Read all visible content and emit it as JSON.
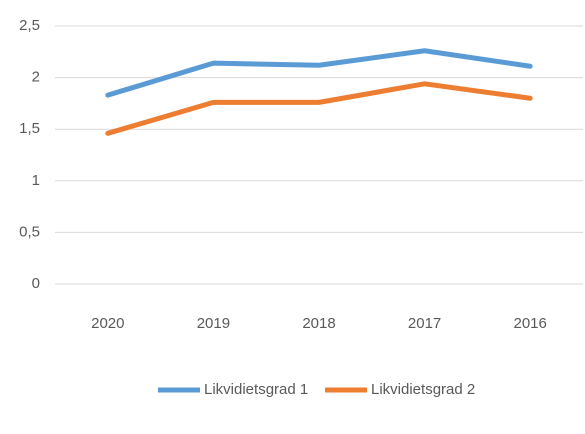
{
  "chart_data": {
    "type": "line",
    "categories": [
      "2020",
      "2019",
      "2018",
      "2017",
      "2016"
    ],
    "series": [
      {
        "name": "Likvidietsgrad 1",
        "color": "#5b9bd5",
        "values": [
          1.83,
          2.14,
          2.12,
          2.26,
          2.11
        ]
      },
      {
        "name": "Likvidietsgrad 2",
        "color": "#ed7d31",
        "values": [
          1.46,
          1.76,
          1.76,
          1.94,
          1.8
        ]
      }
    ],
    "ylim": [
      0,
      2.5
    ],
    "yticks": [
      0,
      {
        "value": 0.5,
        "label": "0,5"
      },
      1,
      {
        "value": 1.5,
        "label": "1,5"
      },
      2,
      {
        "value": 2.5,
        "label": "2,5"
      }
    ],
    "grid": true,
    "legend": "bottom"
  }
}
